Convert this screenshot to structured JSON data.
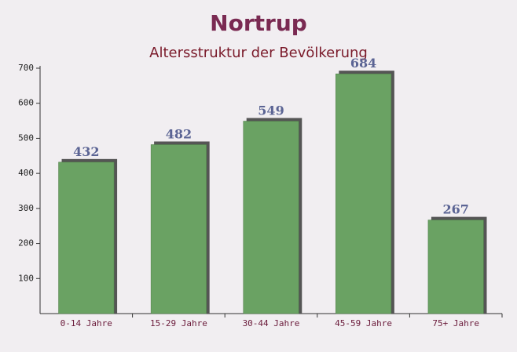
{
  "chart_data": {
    "type": "bar",
    "title": "Nortrup",
    "subtitle": "Altersstruktur der Bevölkerung",
    "categories": [
      "0-14 Jahre",
      "15-29 Jahre",
      "30-44 Jahre",
      "45-59 Jahre",
      "75+ Jahre"
    ],
    "values": [
      432,
      482,
      549,
      684,
      267
    ],
    "color": "#6aa263",
    "ylim": [
      0,
      700
    ],
    "yticks": [
      100,
      200,
      300,
      400,
      500,
      600,
      700
    ]
  }
}
